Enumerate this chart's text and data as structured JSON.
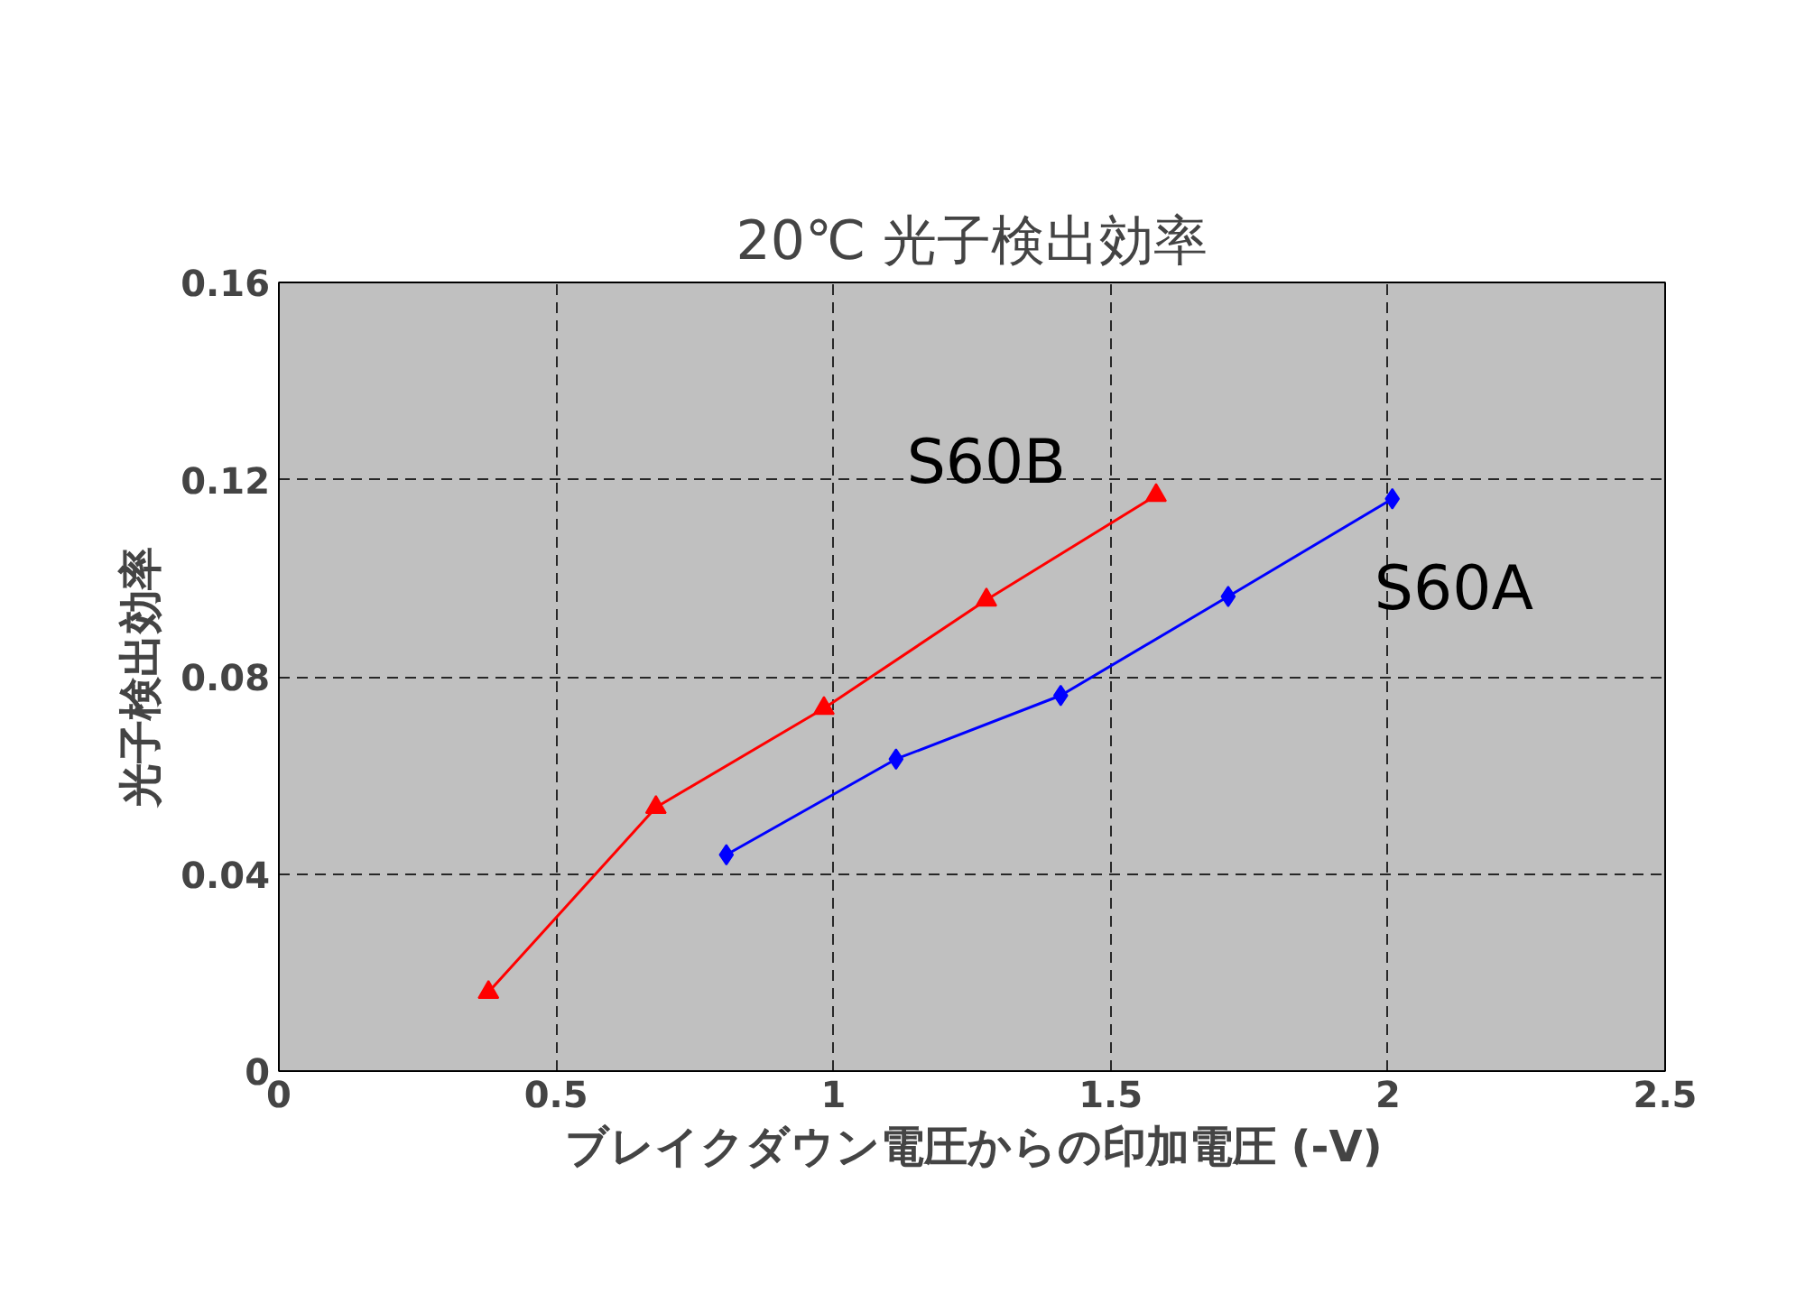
{
  "chart_data": {
    "type": "line",
    "title": "20℃ 光子検出効率",
    "xlabel": "ブレイクダウン電圧からの印加電圧 (-V)",
    "ylabel": "光子検出効率",
    "xlim": [
      0,
      2.5
    ],
    "xticks": [
      0,
      0.5,
      1,
      1.5,
      2,
      2.5
    ],
    "ylim": [
      0,
      0.16
    ],
    "yticks": [
      0,
      0.04,
      0.08,
      0.12,
      0.16
    ],
    "grid": true,
    "series": [
      {
        "name": "S60B",
        "color": "#ff0000",
        "marker": "triangle",
        "x": [
          0.378,
          0.68,
          0.983,
          1.276,
          1.582
        ],
        "values": [
          0.016,
          0.0535,
          0.0736,
          0.0956,
          0.1168
        ]
      },
      {
        "name": "S60A",
        "color": "#0000ff",
        "marker": "diamond",
        "x": [
          0.807,
          1.113,
          1.41,
          1.712,
          2.008
        ],
        "values": [
          0.0439,
          0.0633,
          0.0762,
          0.0963,
          0.1161
        ]
      }
    ]
  }
}
